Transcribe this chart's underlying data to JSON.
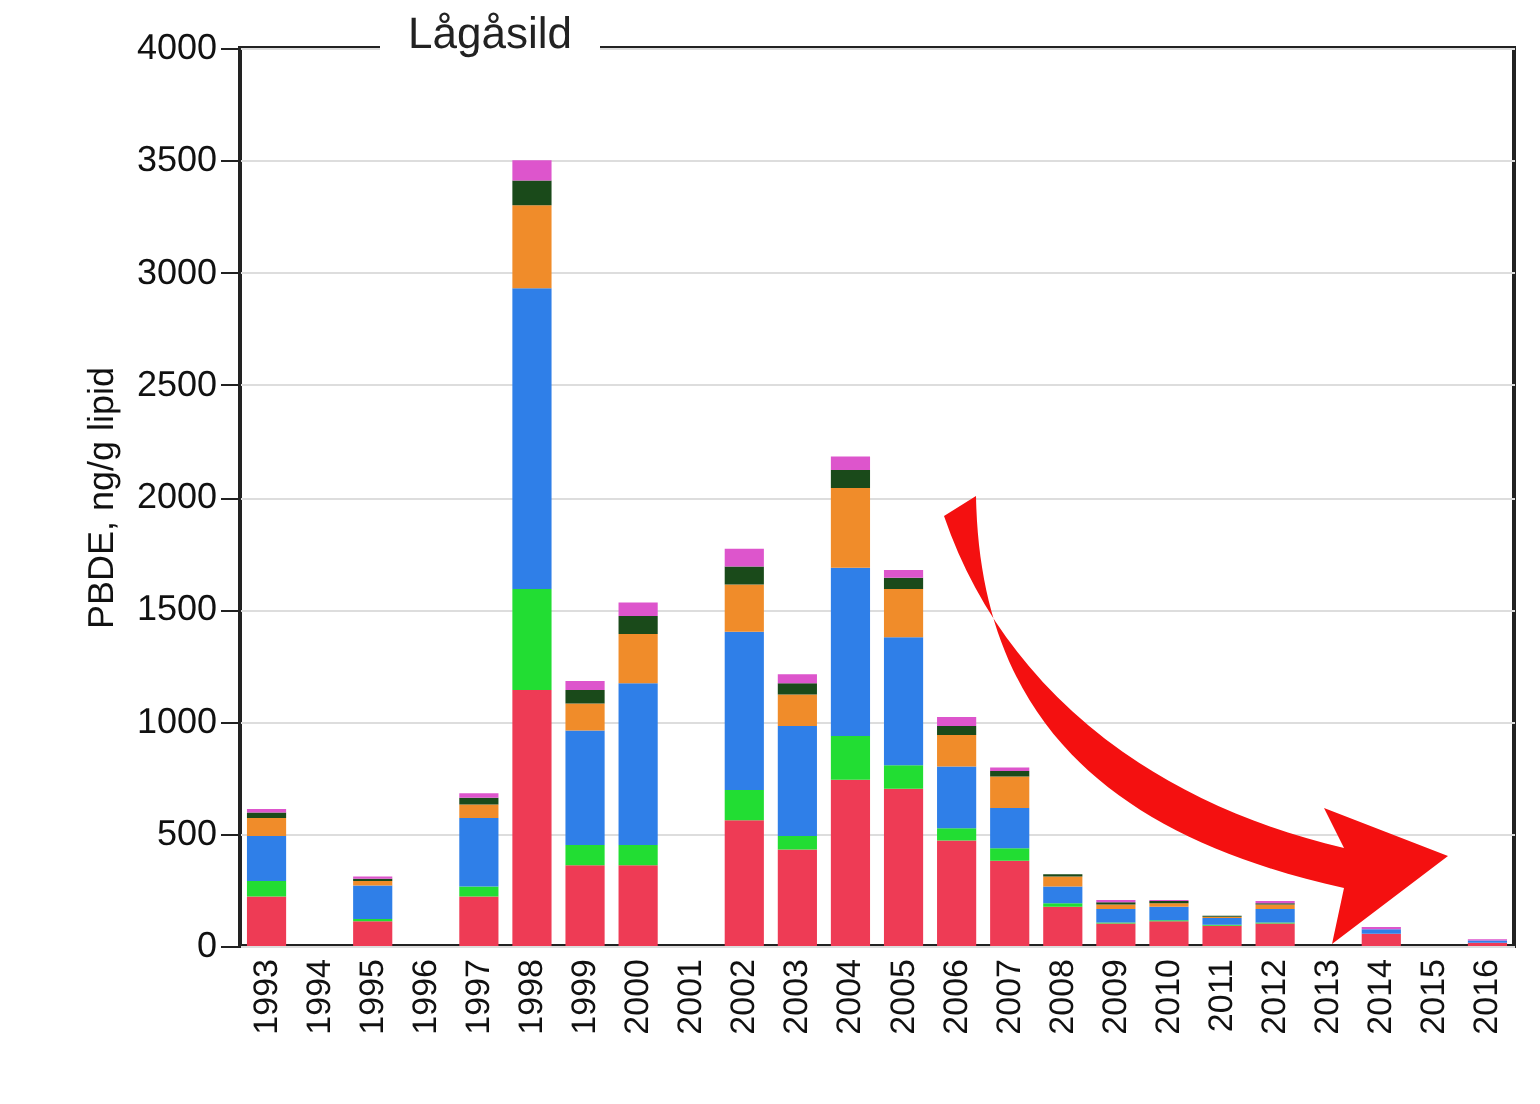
{
  "chart_data": {
    "type": "bar",
    "title": "Lågåsild",
    "ylabel": "PBDE, ng/g lipid",
    "stacked": true,
    "grid": "y",
    "categories": [
      "1993",
      "1994",
      "1995",
      "1996",
      "1997",
      "1998",
      "1999",
      "2000",
      "2001",
      "2002",
      "2003",
      "2004",
      "2005",
      "2006",
      "2007",
      "2008",
      "2009",
      "2010",
      "2011",
      "2012",
      "2013",
      "2014",
      "2015",
      "2016"
    ],
    "ylim": [
      0,
      4000
    ],
    "yticks": [
      0,
      500,
      1000,
      1500,
      2000,
      2500,
      3000,
      3500,
      4000
    ],
    "series": [
      {
        "color": "#ee3b55",
        "values": [
          220,
          null,
          110,
          null,
          220,
          1140,
          360,
          360,
          null,
          560,
          430,
          740,
          700,
          470,
          380,
          175,
          100,
          110,
          90,
          100,
          null,
          55,
          null,
          15
        ]
      },
      {
        "color": "#22dd33",
        "values": [
          70,
          null,
          10,
          null,
          45,
          450,
          90,
          90,
          null,
          135,
          60,
          195,
          105,
          55,
          55,
          15,
          5,
          5,
          5,
          5,
          null,
          0,
          null,
          0
        ]
      },
      {
        "color": "#2f7fe8",
        "values": [
          200,
          null,
          150,
          null,
          305,
          1340,
          510,
          720,
          null,
          705,
          490,
          750,
          570,
          275,
          180,
          75,
          60,
          60,
          30,
          60,
          null,
          20,
          null,
          10
        ]
      },
      {
        "color": "#f08c2a",
        "values": [
          80,
          null,
          20,
          null,
          60,
          370,
          120,
          220,
          null,
          210,
          140,
          355,
          215,
          140,
          140,
          45,
          20,
          15,
          5,
          20,
          null,
          0,
          null,
          0
        ]
      },
      {
        "color": "#1a4a1a",
        "values": [
          25,
          null,
          10,
          null,
          30,
          110,
          60,
          80,
          null,
          80,
          50,
          80,
          50,
          40,
          25,
          10,
          10,
          10,
          5,
          5,
          null,
          0,
          null,
          0
        ]
      },
      {
        "color": "#dd55cc",
        "values": [
          15,
          null,
          10,
          null,
          20,
          90,
          40,
          60,
          null,
          80,
          40,
          60,
          35,
          40,
          15,
          0,
          10,
          5,
          0,
          10,
          null,
          10,
          null,
          5
        ]
      }
    ]
  }
}
